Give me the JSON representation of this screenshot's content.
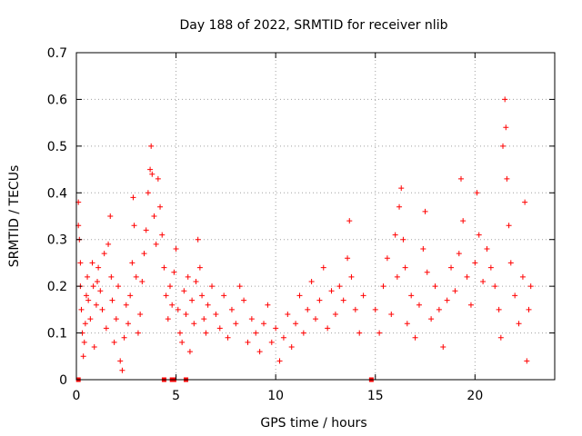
{
  "chart_data": {
    "type": "scatter",
    "title": "Day 188 of 2022, SRMTID for receiver nlib",
    "xlabel": "GPS time / hours",
    "ylabel": "SRMTID / TECUs",
    "xlim": [
      0,
      24
    ],
    "ylim": [
      0,
      0.7
    ],
    "xticks": [
      0,
      5,
      10,
      15,
      20
    ],
    "yticks": [
      0,
      0.1,
      0.2,
      0.3,
      0.4,
      0.5,
      0.6,
      0.7
    ],
    "grid": true,
    "marker": "+",
    "color": "#ff0000",
    "series": [
      {
        "name": "SRMTID",
        "points": [
          [
            0.1,
            0.38
          ],
          [
            0.1,
            0.33
          ],
          [
            0.15,
            0.3
          ],
          [
            0.2,
            0.25
          ],
          [
            0.2,
            0.2
          ],
          [
            0.25,
            0.15
          ],
          [
            0.3,
            0.1
          ],
          [
            0.35,
            0.05
          ],
          [
            0.4,
            0.08
          ],
          [
            0.45,
            0.12
          ],
          [
            0.5,
            0.18
          ],
          [
            0.55,
            0.22
          ],
          [
            0.6,
            0.17
          ],
          [
            0.7,
            0.13
          ],
          [
            0.8,
            0.25
          ],
          [
            0.85,
            0.2
          ],
          [
            0.9,
            0.07
          ],
          [
            1.0,
            0.16
          ],
          [
            1.05,
            0.21
          ],
          [
            1.1,
            0.24
          ],
          [
            1.2,
            0.19
          ],
          [
            1.3,
            0.15
          ],
          [
            1.4,
            0.27
          ],
          [
            1.5,
            0.11
          ],
          [
            1.6,
            0.29
          ],
          [
            1.7,
            0.35
          ],
          [
            1.75,
            0.22
          ],
          [
            1.8,
            0.17
          ],
          [
            1.9,
            0.08
          ],
          [
            2.0,
            0.13
          ],
          [
            2.1,
            0.2
          ],
          [
            2.2,
            0.04
          ],
          [
            2.3,
            0.02
          ],
          [
            2.4,
            0.09
          ],
          [
            2.5,
            0.16
          ],
          [
            2.6,
            0.12
          ],
          [
            2.7,
            0.18
          ],
          [
            2.8,
            0.25
          ],
          [
            2.85,
            0.39
          ],
          [
            2.9,
            0.33
          ],
          [
            3.0,
            0.22
          ],
          [
            3.1,
            0.1
          ],
          [
            3.2,
            0.14
          ],
          [
            3.3,
            0.21
          ],
          [
            3.4,
            0.27
          ],
          [
            3.5,
            0.32
          ],
          [
            3.6,
            0.4
          ],
          [
            3.7,
            0.45
          ],
          [
            3.75,
            0.5
          ],
          [
            3.8,
            0.44
          ],
          [
            3.9,
            0.35
          ],
          [
            4.0,
            0.29
          ],
          [
            4.1,
            0.43
          ],
          [
            4.2,
            0.37
          ],
          [
            4.3,
            0.31
          ],
          [
            4.4,
            0.24
          ],
          [
            4.5,
            0.18
          ],
          [
            4.6,
            0.13
          ],
          [
            4.7,
            0.2
          ],
          [
            4.8,
            0.16
          ],
          [
            4.9,
            0.23
          ],
          [
            5.0,
            0.28
          ],
          [
            5.1,
            0.15
          ],
          [
            5.2,
            0.1
          ],
          [
            5.3,
            0.08
          ],
          [
            5.4,
            0.19
          ],
          [
            5.5,
            0.14
          ],
          [
            5.6,
            0.22
          ],
          [
            5.7,
            0.06
          ],
          [
            5.8,
            0.17
          ],
          [
            5.9,
            0.12
          ],
          [
            6.0,
            0.21
          ],
          [
            6.1,
            0.3
          ],
          [
            6.2,
            0.24
          ],
          [
            6.3,
            0.18
          ],
          [
            6.4,
            0.13
          ],
          [
            6.5,
            0.1
          ],
          [
            6.6,
            0.16
          ],
          [
            6.8,
            0.2
          ],
          [
            7.0,
            0.14
          ],
          [
            7.2,
            0.11
          ],
          [
            7.4,
            0.18
          ],
          [
            7.6,
            0.09
          ],
          [
            7.8,
            0.15
          ],
          [
            8.0,
            0.12
          ],
          [
            8.2,
            0.2
          ],
          [
            8.4,
            0.17
          ],
          [
            8.6,
            0.08
          ],
          [
            8.8,
            0.13
          ],
          [
            9.0,
            0.1
          ],
          [
            9.2,
            0.06
          ],
          [
            9.4,
            0.12
          ],
          [
            9.6,
            0.16
          ],
          [
            9.8,
            0.08
          ],
          [
            10.0,
            0.11
          ],
          [
            10.2,
            0.04
          ],
          [
            10.4,
            0.09
          ],
          [
            10.6,
            0.14
          ],
          [
            10.8,
            0.07
          ],
          [
            11.0,
            0.12
          ],
          [
            11.2,
            0.18
          ],
          [
            11.4,
            0.1
          ],
          [
            11.6,
            0.15
          ],
          [
            11.8,
            0.21
          ],
          [
            12.0,
            0.13
          ],
          [
            12.2,
            0.17
          ],
          [
            12.4,
            0.24
          ],
          [
            12.6,
            0.11
          ],
          [
            12.8,
            0.19
          ],
          [
            13.0,
            0.14
          ],
          [
            13.2,
            0.2
          ],
          [
            13.4,
            0.17
          ],
          [
            13.6,
            0.26
          ],
          [
            13.7,
            0.34
          ],
          [
            13.8,
            0.22
          ],
          [
            14.0,
            0.15
          ],
          [
            14.2,
            0.1
          ],
          [
            14.4,
            0.18
          ],
          [
            15.0,
            0.15
          ],
          [
            15.2,
            0.1
          ],
          [
            15.4,
            0.2
          ],
          [
            15.6,
            0.26
          ],
          [
            15.8,
            0.14
          ],
          [
            16.0,
            0.31
          ],
          [
            16.1,
            0.22
          ],
          [
            16.2,
            0.37
          ],
          [
            16.3,
            0.41
          ],
          [
            16.4,
            0.3
          ],
          [
            16.5,
            0.24
          ],
          [
            16.6,
            0.12
          ],
          [
            16.8,
            0.18
          ],
          [
            17.0,
            0.09
          ],
          [
            17.2,
            0.16
          ],
          [
            17.4,
            0.28
          ],
          [
            17.5,
            0.36
          ],
          [
            17.6,
            0.23
          ],
          [
            17.8,
            0.13
          ],
          [
            18.0,
            0.2
          ],
          [
            18.2,
            0.15
          ],
          [
            18.4,
            0.07
          ],
          [
            18.6,
            0.17
          ],
          [
            18.8,
            0.24
          ],
          [
            19.0,
            0.19
          ],
          [
            19.2,
            0.27
          ],
          [
            19.3,
            0.43
          ],
          [
            19.4,
            0.34
          ],
          [
            19.6,
            0.22
          ],
          [
            19.8,
            0.16
          ],
          [
            20.0,
            0.25
          ],
          [
            20.1,
            0.4
          ],
          [
            20.2,
            0.31
          ],
          [
            20.4,
            0.21
          ],
          [
            20.6,
            0.28
          ],
          [
            20.8,
            0.24
          ],
          [
            21.0,
            0.2
          ],
          [
            21.2,
            0.15
          ],
          [
            21.3,
            0.09
          ],
          [
            21.4,
            0.5
          ],
          [
            21.5,
            0.6
          ],
          [
            21.55,
            0.54
          ],
          [
            21.6,
            0.43
          ],
          [
            21.7,
            0.33
          ],
          [
            21.8,
            0.25
          ],
          [
            22.0,
            0.18
          ],
          [
            22.2,
            0.12
          ],
          [
            22.4,
            0.22
          ],
          [
            22.5,
            0.38
          ],
          [
            22.6,
            0.04
          ],
          [
            22.7,
            0.15
          ],
          [
            22.8,
            0.2
          ]
        ]
      }
    ],
    "baseline_markers": [
      0.1,
      4.4,
      4.8,
      4.9,
      5.5,
      14.8
    ]
  }
}
